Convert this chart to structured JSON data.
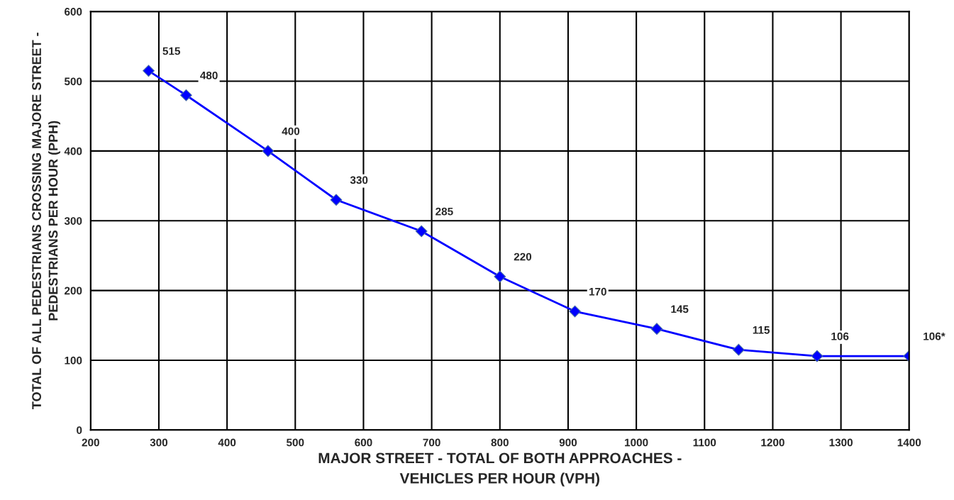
{
  "chart_data": {
    "type": "line",
    "xlabel": "MAJOR STREET - TOTAL OF BOTH APPROACHES -\nVEHICLES PER HOUR (VPH)",
    "ylabel": "TOTAL OF ALL PEDESTRIANS CROSSING MAJORE STREET -\nPEDESTRIANS PER HOUR (PPH)",
    "series": [
      {
        "color": "#0000ff",
        "x": [
          285,
          340,
          460,
          560,
          685,
          800,
          910,
          1030,
          1150,
          1265,
          1400
        ],
        "values": [
          515,
          480,
          400,
          330,
          285,
          220,
          170,
          145,
          115,
          106,
          106
        ],
        "value_labels": [
          "515",
          "480",
          "400",
          "330",
          "285",
          "220",
          "170",
          "145",
          "115",
          "106",
          "106*"
        ]
      }
    ],
    "xlim": [
      200,
      1400
    ],
    "xticks": [
      200,
      300,
      400,
      500,
      600,
      700,
      800,
      900,
      1000,
      1100,
      1200,
      1300,
      1400
    ],
    "ylim": [
      0,
      600
    ],
    "yticks": [
      0,
      100,
      200,
      300,
      400,
      500,
      600
    ],
    "grid": true,
    "marker": "diamond",
    "line_style": "solid"
  }
}
